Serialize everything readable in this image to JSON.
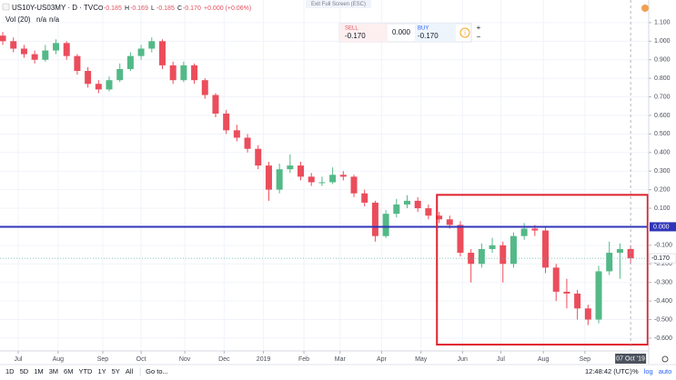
{
  "ui": {
    "symbol": "US10Y-US03MY · D · TVC",
    "ohlc": [
      {
        "key": "O",
        "value": "-0.185"
      },
      {
        "key": "H",
        "value": "-0.169"
      },
      {
        "key": "L",
        "value": "-0.185"
      },
      {
        "key": "C",
        "value": "-0.170"
      }
    ],
    "change": "+0.000 (+0.06%)",
    "volume": "Vol (20)",
    "volume_values": [
      "n/a",
      "n/a"
    ],
    "exit_full_screen": "Exit Full Screen (ESC)",
    "sell_label": "SELL",
    "sell_price": "-0.170",
    "spread": "0.000",
    "buy_label": "BUY",
    "buy_price": "-0.170",
    "ranges": [
      "1D",
      "5D",
      "1M",
      "3M",
      "6M",
      "YTD",
      "1Y",
      "5Y",
      "All"
    ],
    "goto": "Go to...",
    "clock": "12:48:42 (UTC)",
    "scale_options": [
      "%",
      "log",
      "auto"
    ]
  },
  "chart_data": {
    "type": "candlestick",
    "up_color": "#53b987",
    "down_color": "#eb4d5c",
    "open": [
      1.03,
      1.0,
      0.96,
      0.93,
      0.9,
      0.95,
      0.99,
      0.92,
      0.84,
      0.77,
      0.74,
      0.79,
      0.85,
      0.92,
      0.96,
      1.0,
      0.87,
      0.79,
      0.87,
      0.79,
      0.71,
      0.61,
      0.52,
      0.48,
      0.42,
      0.33,
      0.2,
      0.31,
      0.33,
      0.27,
      0.24,
      0.24,
      0.28,
      0.27,
      0.18,
      0.13,
      -0.05,
      0.07,
      0.12,
      0.14,
      0.1,
      0.06,
      0.04,
      0.01,
      -0.14,
      -0.2,
      -0.12,
      -0.1,
      -0.2,
      -0.05,
      -0.01,
      -0.02,
      -0.22,
      -0.35,
      -0.36,
      -0.44,
      -0.5,
      -0.24,
      -0.14,
      -0.12
    ],
    "high": [
      1.05,
      1.02,
      0.98,
      0.95,
      0.98,
      1.01,
      1.0,
      0.93,
      0.86,
      0.79,
      0.81,
      0.88,
      0.94,
      0.98,
      1.02,
      1.01,
      0.89,
      0.89,
      0.88,
      0.8,
      0.72,
      0.63,
      0.55,
      0.5,
      0.44,
      0.35,
      0.34,
      0.39,
      0.35,
      0.29,
      0.27,
      0.32,
      0.3,
      0.28,
      0.2,
      0.14,
      0.09,
      0.15,
      0.17,
      0.16,
      0.12,
      0.08,
      0.06,
      0.03,
      -0.12,
      -0.09,
      -0.06,
      -0.08,
      -0.03,
      0.02,
      0.01,
      0.0,
      -0.2,
      -0.28,
      -0.34,
      -0.42,
      -0.21,
      -0.08,
      -0.09,
      -0.1
    ],
    "low": [
      0.98,
      0.94,
      0.91,
      0.88,
      0.89,
      0.93,
      0.9,
      0.82,
      0.75,
      0.72,
      0.73,
      0.78,
      0.84,
      0.9,
      0.94,
      0.85,
      0.77,
      0.78,
      0.77,
      0.69,
      0.59,
      0.5,
      0.46,
      0.4,
      0.31,
      0.14,
      0.18,
      0.29,
      0.25,
      0.22,
      0.22,
      0.23,
      0.25,
      0.16,
      0.11,
      -0.08,
      -0.06,
      0.05,
      0.1,
      0.08,
      0.04,
      0.02,
      -0.01,
      -0.16,
      -0.3,
      -0.22,
      -0.14,
      -0.3,
      -0.22,
      -0.07,
      -0.05,
      -0.25,
      -0.4,
      -0.44,
      -0.5,
      -0.53,
      -0.52,
      -0.26,
      -0.28,
      -0.2
    ],
    "close": [
      1.0,
      0.96,
      0.93,
      0.9,
      0.95,
      0.99,
      0.92,
      0.84,
      0.77,
      0.74,
      0.79,
      0.85,
      0.92,
      0.96,
      1.0,
      0.87,
      0.79,
      0.87,
      0.79,
      0.71,
      0.61,
      0.52,
      0.48,
      0.42,
      0.33,
      0.2,
      0.31,
      0.33,
      0.27,
      0.24,
      0.24,
      0.28,
      0.27,
      0.18,
      0.13,
      -0.05,
      0.07,
      0.12,
      0.14,
      0.1,
      0.06,
      0.04,
      0.01,
      -0.14,
      -0.2,
      -0.12,
      -0.1,
      -0.2,
      -0.05,
      -0.01,
      -0.02,
      -0.22,
      -0.35,
      -0.36,
      -0.44,
      -0.5,
      -0.24,
      -0.14,
      -0.12,
      -0.17
    ],
    "xlim": [
      -0.26,
      60.7
    ],
    "xticks": [
      {
        "value": 1.45,
        "label": "Jul"
      },
      {
        "value": 5.2,
        "label": "Aug"
      },
      {
        "value": 9.4,
        "label": "Sep"
      },
      {
        "value": 13.0,
        "label": "Oct"
      },
      {
        "value": 17.1,
        "label": "Nov"
      },
      {
        "value": 20.8,
        "label": "Dec"
      },
      {
        "value": 24.5,
        "label": "2019"
      },
      {
        "value": 28.3,
        "label": "Feb"
      },
      {
        "value": 31.7,
        "label": "Mar"
      },
      {
        "value": 35.6,
        "label": "Apr"
      },
      {
        "value": 39.3,
        "label": "May"
      },
      {
        "value": 43.2,
        "label": "Jun"
      },
      {
        "value": 46.8,
        "label": "Jul"
      },
      {
        "value": 50.8,
        "label": "Aug"
      },
      {
        "value": 54.7,
        "label": "Sep"
      }
    ],
    "x_marker": {
      "value": 59,
      "label": "07 Oct '19"
    },
    "ylim": [
      -0.664,
      1.222
    ],
    "yticks": [
      {
        "value": -0.6,
        "label": "-0.600"
      },
      {
        "value": -0.5,
        "label": "-0.500"
      },
      {
        "value": -0.4,
        "label": "-0.400"
      },
      {
        "value": -0.3,
        "label": "-0.300"
      },
      {
        "value": -0.2,
        "label": "-0.200"
      },
      {
        "value": -0.1,
        "label": "-0.100"
      },
      {
        "value": 0.1,
        "label": "0.100"
      },
      {
        "value": 0.2,
        "label": "0.200"
      },
      {
        "value": 0.3,
        "label": "0.300"
      },
      {
        "value": 0.4,
        "label": "0.400"
      },
      {
        "value": 0.5,
        "label": "0.500"
      },
      {
        "value": 0.6,
        "label": "0.600"
      },
      {
        "value": 0.7,
        "label": "0.700"
      },
      {
        "value": 0.8,
        "label": "0.800"
      },
      {
        "value": 0.9,
        "label": "0.900"
      },
      {
        "value": 1.0,
        "label": "1.000"
      },
      {
        "value": 1.1,
        "label": "1.100"
      }
    ],
    "grid": true,
    "hline": {
      "value": 0,
      "label": "0.000",
      "color": "#2f35b8"
    },
    "last_price": {
      "value": -0.17,
      "label": "-0.170",
      "color": "#5fb4ae"
    },
    "box": {
      "x": [
        40.8,
        60.6
      ],
      "y": [
        -0.635,
        0.172
      ],
      "color": "#e0202c"
    }
  }
}
